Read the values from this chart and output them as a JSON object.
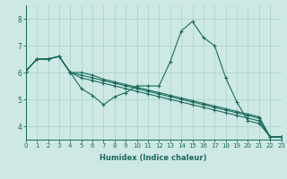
{
  "xlabel": "Humidex (Indice chaleur)",
  "background_color": "#cde8e5",
  "grid_color": "#afd4cf",
  "line_color": "#1a6b5a",
  "xlim": [
    0,
    23
  ],
  "ylim": [
    3.5,
    8.5
  ],
  "yticks": [
    4,
    5,
    6,
    7,
    8
  ],
  "xticks": [
    0,
    1,
    2,
    3,
    4,
    5,
    6,
    7,
    8,
    9,
    10,
    11,
    12,
    13,
    14,
    15,
    16,
    17,
    18,
    19,
    20,
    21,
    22,
    23
  ],
  "series": [
    [
      6.05,
      6.5,
      6.5,
      6.6,
      6.0,
      5.4,
      5.15,
      4.8,
      5.1,
      5.25,
      5.5,
      5.5,
      5.5,
      6.4,
      7.55,
      7.9,
      7.3,
      7.0,
      5.8,
      4.9,
      4.2,
      4.1,
      3.6,
      3.6
    ],
    [
      6.05,
      6.5,
      6.5,
      6.6,
      6.0,
      6.0,
      5.9,
      5.75,
      5.65,
      5.55,
      5.45,
      5.35,
      5.25,
      5.15,
      5.05,
      4.95,
      4.85,
      4.75,
      4.65,
      4.55,
      4.45,
      4.35,
      3.6,
      3.6
    ],
    [
      6.05,
      6.5,
      6.5,
      6.6,
      6.0,
      5.8,
      5.7,
      5.6,
      5.5,
      5.4,
      5.3,
      5.2,
      5.1,
      5.0,
      4.9,
      4.8,
      4.7,
      4.6,
      4.5,
      4.4,
      4.3,
      4.2,
      3.6,
      3.6
    ],
    [
      6.05,
      6.5,
      6.5,
      6.6,
      6.0,
      5.9,
      5.8,
      5.7,
      5.6,
      5.5,
      5.4,
      5.3,
      5.2,
      5.1,
      5.0,
      4.9,
      4.8,
      4.7,
      4.6,
      4.5,
      4.4,
      4.3,
      3.6,
      3.6
    ]
  ],
  "xlabel_fontsize": 6.0,
  "tick_fontsize": 5.0
}
